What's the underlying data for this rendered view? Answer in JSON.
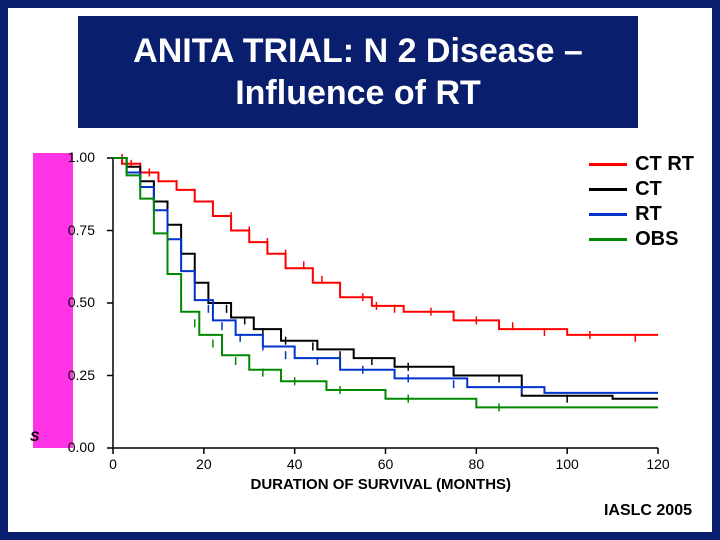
{
  "title": "ANITA TRIAL: N 2 Disease – Influence of RT",
  "chart": {
    "type": "line",
    "background_color": "#ffffff",
    "border_color": "#0a1e6e",
    "xlabel": "DURATION OF SURVIVAL (MONTHS)",
    "y_side_letter": "S",
    "xlim": [
      0,
      120
    ],
    "ylim": [
      0,
      1
    ],
    "xticks": [
      0,
      20,
      40,
      60,
      80,
      100,
      120
    ],
    "yticks": [
      0,
      0.25,
      0.5,
      0.75,
      1
    ],
    "ytick_labels": [
      "0.00",
      "0.25",
      "0.50",
      "0.75",
      "1.00"
    ],
    "axis_color": "#000000",
    "line_width": 2,
    "title_fontsize": 34,
    "label_fontsize": 15,
    "tick_fontsize": 14,
    "legend_fontsize": 20,
    "pink_bar_color": "#ff33e6",
    "series": [
      {
        "name": "CT RT",
        "color": "#ff0000",
        "ticks": [
          [
            2,
            1.0
          ],
          [
            4,
            0.98
          ],
          [
            6,
            0.97
          ],
          [
            8,
            0.95
          ],
          [
            10,
            0.93
          ],
          [
            14,
            0.91
          ],
          [
            18,
            0.88
          ],
          [
            22,
            0.84
          ],
          [
            26,
            0.8
          ],
          [
            30,
            0.75
          ],
          [
            34,
            0.71
          ],
          [
            38,
            0.67
          ],
          [
            42,
            0.63
          ],
          [
            46,
            0.58
          ],
          [
            50,
            0.55
          ],
          [
            55,
            0.52
          ],
          [
            58,
            0.49
          ],
          [
            62,
            0.48
          ],
          [
            70,
            0.47
          ],
          [
            75,
            0.46
          ],
          [
            80,
            0.44
          ],
          [
            88,
            0.42
          ],
          [
            95,
            0.4
          ],
          [
            105,
            0.39
          ],
          [
            115,
            0.38
          ]
        ],
        "points": [
          [
            0,
            1.0
          ],
          [
            2,
            1.0
          ],
          [
            2,
            0.98
          ],
          [
            6,
            0.98
          ],
          [
            6,
            0.95
          ],
          [
            10,
            0.95
          ],
          [
            10,
            0.92
          ],
          [
            14,
            0.92
          ],
          [
            14,
            0.89
          ],
          [
            18,
            0.89
          ],
          [
            18,
            0.85
          ],
          [
            22,
            0.85
          ],
          [
            22,
            0.8
          ],
          [
            26,
            0.8
          ],
          [
            26,
            0.75
          ],
          [
            30,
            0.75
          ],
          [
            30,
            0.71
          ],
          [
            34,
            0.71
          ],
          [
            34,
            0.67
          ],
          [
            38,
            0.67
          ],
          [
            38,
            0.62
          ],
          [
            44,
            0.62
          ],
          [
            44,
            0.57
          ],
          [
            50,
            0.57
          ],
          [
            50,
            0.52
          ],
          [
            57,
            0.52
          ],
          [
            57,
            0.49
          ],
          [
            64,
            0.49
          ],
          [
            64,
            0.47
          ],
          [
            75,
            0.47
          ],
          [
            75,
            0.44
          ],
          [
            85,
            0.44
          ],
          [
            85,
            0.41
          ],
          [
            100,
            0.41
          ],
          [
            100,
            0.39
          ],
          [
            120,
            0.39
          ]
        ]
      },
      {
        "name": "CT",
        "color": "#000000",
        "ticks": [
          [
            3,
            0.98
          ],
          [
            6,
            0.95
          ],
          [
            9,
            0.9
          ],
          [
            12,
            0.82
          ],
          [
            15,
            0.72
          ],
          [
            18,
            0.62
          ],
          [
            21,
            0.54
          ],
          [
            25,
            0.48
          ],
          [
            29,
            0.44
          ],
          [
            33,
            0.4
          ],
          [
            38,
            0.37
          ],
          [
            44,
            0.35
          ],
          [
            50,
            0.32
          ],
          [
            57,
            0.3
          ],
          [
            65,
            0.28
          ],
          [
            75,
            0.26
          ],
          [
            85,
            0.24
          ],
          [
            100,
            0.17
          ]
        ],
        "points": [
          [
            0,
            1.0
          ],
          [
            3,
            1.0
          ],
          [
            3,
            0.97
          ],
          [
            6,
            0.97
          ],
          [
            6,
            0.92
          ],
          [
            9,
            0.92
          ],
          [
            9,
            0.85
          ],
          [
            12,
            0.85
          ],
          [
            12,
            0.77
          ],
          [
            15,
            0.77
          ],
          [
            15,
            0.67
          ],
          [
            18,
            0.67
          ],
          [
            18,
            0.57
          ],
          [
            21,
            0.57
          ],
          [
            21,
            0.5
          ],
          [
            26,
            0.5
          ],
          [
            26,
            0.45
          ],
          [
            31,
            0.45
          ],
          [
            31,
            0.41
          ],
          [
            37,
            0.41
          ],
          [
            37,
            0.37
          ],
          [
            45,
            0.37
          ],
          [
            45,
            0.34
          ],
          [
            53,
            0.34
          ],
          [
            53,
            0.31
          ],
          [
            62,
            0.31
          ],
          [
            62,
            0.28
          ],
          [
            75,
            0.28
          ],
          [
            75,
            0.25
          ],
          [
            90,
            0.25
          ],
          [
            90,
            0.18
          ],
          [
            110,
            0.18
          ],
          [
            110,
            0.17
          ],
          [
            120,
            0.17
          ]
        ]
      },
      {
        "name": "RT",
        "color": "#0033cc",
        "ticks": [
          [
            3,
            0.97
          ],
          [
            6,
            0.93
          ],
          [
            9,
            0.87
          ],
          [
            12,
            0.78
          ],
          [
            15,
            0.67
          ],
          [
            18,
            0.57
          ],
          [
            21,
            0.48
          ],
          [
            24,
            0.42
          ],
          [
            28,
            0.38
          ],
          [
            33,
            0.35
          ],
          [
            38,
            0.32
          ],
          [
            45,
            0.3
          ],
          [
            55,
            0.27
          ],
          [
            65,
            0.24
          ],
          [
            75,
            0.22
          ],
          [
            90,
            0.2
          ]
        ],
        "points": [
          [
            0,
            1.0
          ],
          [
            3,
            1.0
          ],
          [
            3,
            0.95
          ],
          [
            6,
            0.95
          ],
          [
            6,
            0.9
          ],
          [
            9,
            0.9
          ],
          [
            9,
            0.82
          ],
          [
            12,
            0.82
          ],
          [
            12,
            0.72
          ],
          [
            15,
            0.72
          ],
          [
            15,
            0.61
          ],
          [
            18,
            0.61
          ],
          [
            18,
            0.51
          ],
          [
            22,
            0.51
          ],
          [
            22,
            0.44
          ],
          [
            27,
            0.44
          ],
          [
            27,
            0.39
          ],
          [
            33,
            0.39
          ],
          [
            33,
            0.35
          ],
          [
            40,
            0.35
          ],
          [
            40,
            0.31
          ],
          [
            50,
            0.31
          ],
          [
            50,
            0.27
          ],
          [
            62,
            0.27
          ],
          [
            62,
            0.24
          ],
          [
            78,
            0.24
          ],
          [
            78,
            0.21
          ],
          [
            95,
            0.21
          ],
          [
            95,
            0.19
          ],
          [
            120,
            0.19
          ]
        ]
      },
      {
        "name": "OBS",
        "color": "#008800",
        "ticks": [
          [
            3,
            0.96
          ],
          [
            6,
            0.9
          ],
          [
            9,
            0.82
          ],
          [
            12,
            0.68
          ],
          [
            15,
            0.55
          ],
          [
            18,
            0.43
          ],
          [
            22,
            0.36
          ],
          [
            27,
            0.3
          ],
          [
            33,
            0.26
          ],
          [
            40,
            0.23
          ],
          [
            50,
            0.2
          ],
          [
            65,
            0.17
          ],
          [
            85,
            0.14
          ]
        ],
        "points": [
          [
            0,
            1.0
          ],
          [
            3,
            1.0
          ],
          [
            3,
            0.94
          ],
          [
            6,
            0.94
          ],
          [
            6,
            0.86
          ],
          [
            9,
            0.86
          ],
          [
            9,
            0.74
          ],
          [
            12,
            0.74
          ],
          [
            12,
            0.6
          ],
          [
            15,
            0.6
          ],
          [
            15,
            0.47
          ],
          [
            19,
            0.47
          ],
          [
            19,
            0.39
          ],
          [
            24,
            0.39
          ],
          [
            24,
            0.32
          ],
          [
            30,
            0.32
          ],
          [
            30,
            0.27
          ],
          [
            37,
            0.27
          ],
          [
            37,
            0.23
          ],
          [
            47,
            0.23
          ],
          [
            47,
            0.2
          ],
          [
            60,
            0.2
          ],
          [
            60,
            0.17
          ],
          [
            80,
            0.17
          ],
          [
            80,
            0.14
          ],
          [
            120,
            0.14
          ]
        ]
      }
    ]
  },
  "source": "IASLC 2005"
}
